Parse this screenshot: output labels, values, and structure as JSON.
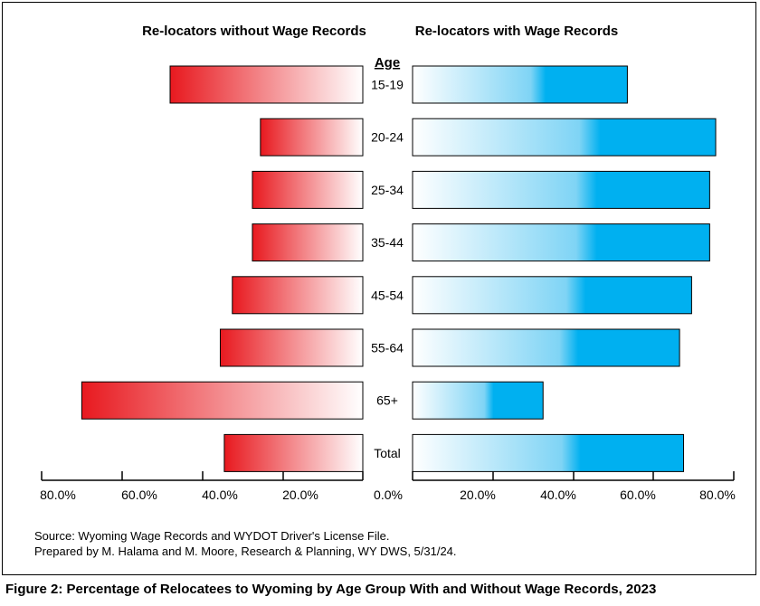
{
  "chart_data": {
    "type": "bar",
    "categories": [
      "15-19",
      "20-24",
      "25-34",
      "35-44",
      "45-54",
      "55-64",
      "65+",
      "Total"
    ],
    "series": [
      {
        "name": "Re-locators without Wage Records",
        "values": [
          48.0,
          25.5,
          27.5,
          27.5,
          32.5,
          35.5,
          70.0,
          34.5
        ],
        "color": "#e8191f"
      },
      {
        "name": "Re-locators with Wage Records",
        "values": [
          53.5,
          75.5,
          74.0,
          74.0,
          69.5,
          66.5,
          32.5,
          67.5
        ],
        "color": "#00b0f0"
      }
    ],
    "axis_title": "Age",
    "left_ticks": [
      "80.0%",
      "60.0%",
      "40.0%",
      "20.0%",
      "0.0%"
    ],
    "right_ticks": [
      "20.0%",
      "40.0%",
      "60.0%",
      "80.0%"
    ],
    "xlim": [
      0,
      80
    ]
  },
  "source_lines": [
    "Source: Wyoming Wage Records and WYDOT Driver's License File.",
    "Prepared by M. Halama and M. Moore, Research & Planning, WY DWS, 5/31/24."
  ],
  "caption": "Figure 2: Percentage of Relocatees to Wyoming by Age Group With and Without Wage Records, 2023"
}
